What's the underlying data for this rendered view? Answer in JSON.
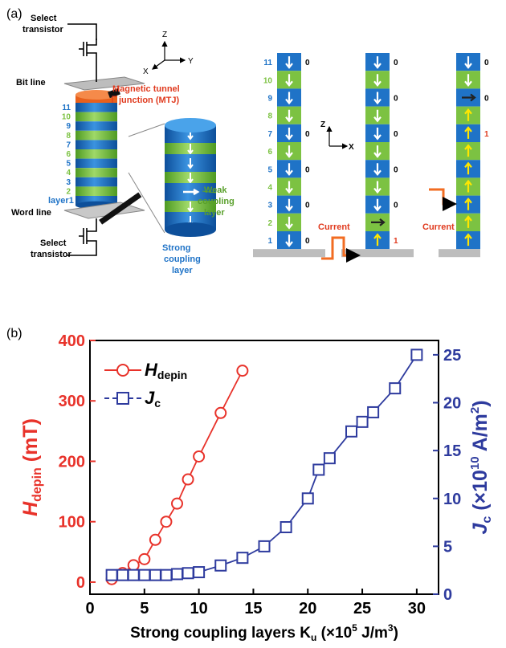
{
  "panel_a": {
    "label": "(a)",
    "select_top": [
      "Select",
      "transistor"
    ],
    "axes": {
      "z": "Z",
      "x": "X",
      "y": "Y"
    },
    "bit_line": "Bit line",
    "mtj": [
      "Magnetic tunnel",
      "junction (MTJ)"
    ],
    "layer_numbers": [
      "11",
      "10",
      "9",
      "8",
      "7",
      "6",
      "5",
      "4",
      "3",
      "2"
    ],
    "layer1": "layer1",
    "word_line": "Word line",
    "select_bottom": [
      "Select",
      "transistor"
    ],
    "weak": [
      "Weak",
      "coupling",
      "layer"
    ],
    "strong": [
      "Strong",
      "coupling",
      "layer"
    ],
    "stack_labels": [
      "11",
      "10",
      "9",
      "8",
      "7",
      "6",
      "5",
      "4",
      "3",
      "2",
      "1"
    ],
    "states": {
      "s1": [
        "0",
        "0",
        "0",
        "0",
        "0",
        "0"
      ],
      "s2": [
        "0",
        "0",
        "0",
        "0",
        "0",
        "1"
      ],
      "s3": [
        "0",
        "0",
        "1"
      ]
    },
    "axes2": {
      "z": "Z",
      "x": "X"
    },
    "current": "Current",
    "colors": {
      "blue": "#1f73c7",
      "green": "#7cc242",
      "red": "#e03a1e",
      "orange": "#f26c22"
    }
  },
  "panel_b": {
    "label": "(b)"
  },
  "chart_data": {
    "type": "scatter",
    "xlabel": "Strong coupling layers K",
    "xlabel_sub": "u",
    "xlabel_tail": " (×10",
    "xlabel_exp": "5",
    "xlabel_unit": " J/m",
    "xlabel_unit_exp": "3",
    "xlabel_close": ")",
    "xlim": [
      0,
      32
    ],
    "xticks": [
      "0",
      "5",
      "10",
      "15",
      "20",
      "25",
      "30"
    ],
    "ylim_left": [
      -20,
      400
    ],
    "yticks_left": [
      "0",
      "100",
      "200",
      "300",
      "400"
    ],
    "ylim_right": [
      0,
      26.5
    ],
    "yticks_right": [
      "0",
      "5",
      "10",
      "15",
      "20",
      "25"
    ],
    "ylabel_left": "H",
    "ylabel_left_sub": "depin",
    "ylabel_left_unit": " (mT)",
    "ylabel_right": "J",
    "ylabel_right_sub": "c",
    "ylabel_right_unit": " (×10",
    "ylabel_right_exp": "10",
    "ylabel_right_unit2": " A/m",
    "ylabel_right_exp2": "2",
    "ylabel_right_close": ")",
    "legend_position": "top-left",
    "series": [
      {
        "name": "H",
        "name_sub": "depin",
        "axis": "left",
        "marker": "circle",
        "color": "#e8322a",
        "x": [
          2,
          3,
          4,
          5,
          6,
          7,
          8,
          9,
          10,
          12,
          14
        ],
        "y": [
          5,
          15,
          28,
          38,
          70,
          100,
          130,
          170,
          208,
          280,
          350
        ]
      },
      {
        "name": "J",
        "name_sub": "c",
        "axis": "right",
        "marker": "square",
        "color": "#2e3b9e",
        "x": [
          2,
          3,
          4,
          5,
          6,
          7,
          8,
          9,
          10,
          12,
          14,
          16,
          18,
          20,
          21,
          22,
          24,
          25,
          26,
          28,
          30
        ],
        "y": [
          2,
          2,
          2,
          2,
          2,
          2,
          2.1,
          2.2,
          2.3,
          3,
          3.8,
          5,
          7,
          10,
          13,
          14.2,
          17,
          18,
          19,
          21.5,
          25
        ]
      }
    ]
  }
}
